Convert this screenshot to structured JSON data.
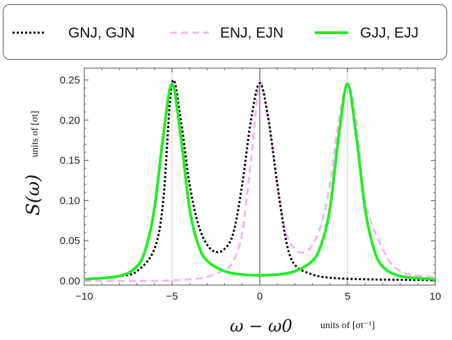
{
  "chart_data": {
    "type": "line",
    "title": "",
    "xlabel": "ω − ω0",
    "xlabel_units": "units of [σt⁻¹]",
    "ylabel": "S(ω)",
    "ylabel_units": "units of [σt]",
    "xlim": [
      -10,
      10
    ],
    "ylim": [
      0,
      0.25
    ],
    "xticks": [
      -10,
      -5,
      0,
      5,
      10
    ],
    "xtick_labels": [
      "−10",
      "−5",
      "0",
      "5",
      "10"
    ],
    "yticks": [
      0,
      0.05,
      0.1,
      0.15,
      0.2,
      0.25
    ],
    "ytick_labels": [
      "0.00",
      "0.05",
      "0.10",
      "0.15",
      "0.20",
      "0.25"
    ],
    "grid": "vertical gridlines at x = -5 and x = 5, solid line at x = 0",
    "legend_position": "top, outside plot",
    "series": [
      {
        "name": "GNJ, GJN",
        "color": "#000000",
        "style": "dotted",
        "x": [
          -10,
          -8,
          -7,
          -6,
          -5.5,
          -5,
          -4.5,
          -4,
          -3.5,
          -3,
          -2.5,
          -2,
          -1.5,
          -1,
          -0.5,
          0,
          0.5,
          1,
          1.5,
          2,
          3,
          4,
          6,
          10
        ],
        "y": [
          0.002,
          0.006,
          0.012,
          0.04,
          0.1,
          0.246,
          0.2,
          0.12,
          0.07,
          0.045,
          0.036,
          0.04,
          0.06,
          0.12,
          0.2,
          0.246,
          0.2,
          0.12,
          0.05,
          0.02,
          0.008,
          0.004,
          0.002,
          0.001
        ]
      },
      {
        "name": "ENJ, EJN",
        "color": "#f0b8ee",
        "style": "dashed",
        "x": [
          -10,
          -6,
          -4,
          -3,
          -2,
          -1.5,
          -1,
          -0.5,
          0,
          0.5,
          1,
          1.5,
          2,
          2.5,
          3,
          3.5,
          4,
          4.5,
          5,
          5.5,
          6,
          7,
          8,
          10
        ],
        "y": [
          0.0,
          0.0,
          0.002,
          0.005,
          0.014,
          0.025,
          0.06,
          0.15,
          0.246,
          0.2,
          0.12,
          0.06,
          0.04,
          0.035,
          0.045,
          0.07,
          0.12,
          0.2,
          0.246,
          0.2,
          0.1,
          0.04,
          0.012,
          0.004
        ]
      },
      {
        "name": "GJJ, EJJ",
        "color": "#22ee22",
        "style": "solid",
        "x": [
          -10,
          -8,
          -7,
          -6.5,
          -6,
          -5.5,
          -5,
          -4.5,
          -4,
          -3.5,
          -3,
          -2,
          -1,
          0,
          1,
          2,
          3,
          3.5,
          4,
          4.5,
          5,
          5.5,
          6,
          6.5,
          7,
          8,
          10
        ],
        "y": [
          0.002,
          0.006,
          0.018,
          0.04,
          0.09,
          0.18,
          0.245,
          0.18,
          0.09,
          0.045,
          0.025,
          0.012,
          0.008,
          0.007,
          0.008,
          0.012,
          0.025,
          0.045,
          0.09,
          0.18,
          0.245,
          0.18,
          0.09,
          0.04,
          0.018,
          0.006,
          0.002
        ]
      }
    ]
  }
}
